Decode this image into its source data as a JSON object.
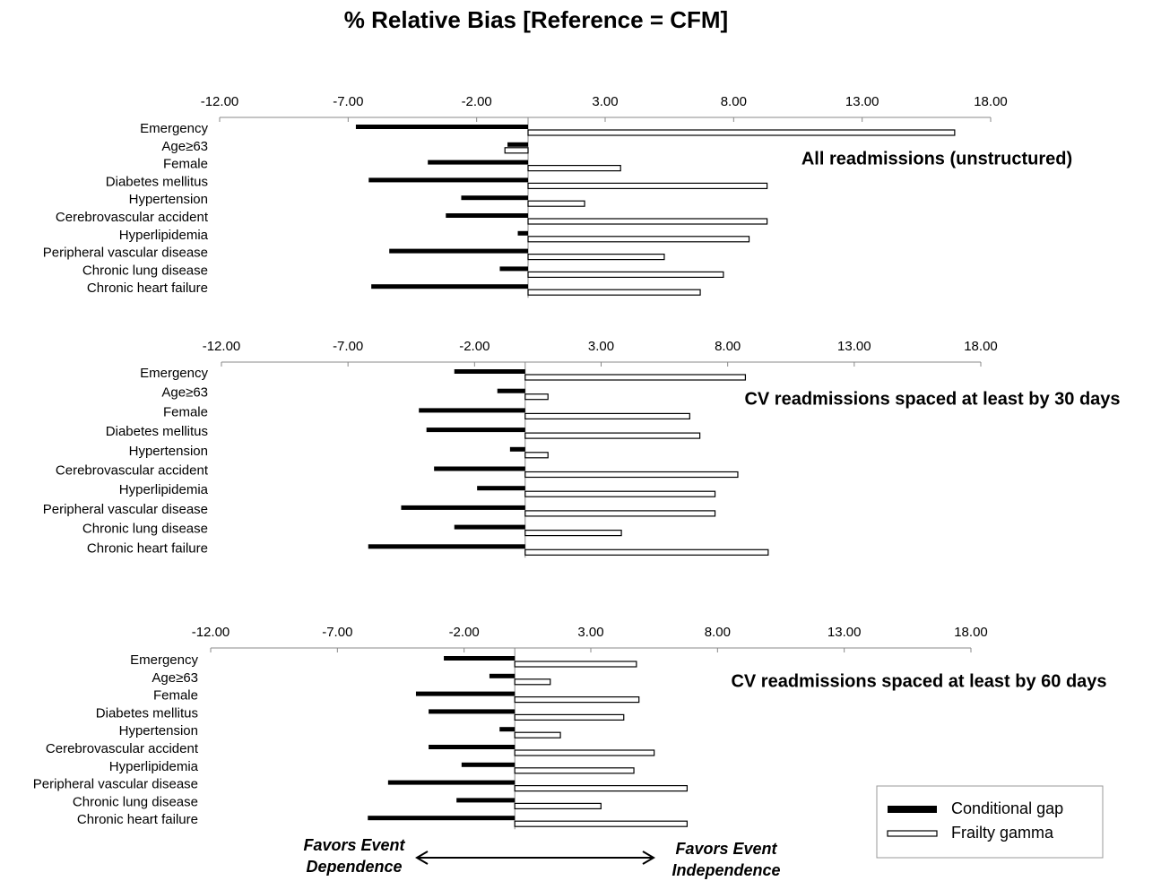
{
  "title": "% Relative Bias [Reference = CFM]",
  "annotations": [
    "Favors Event Dependence",
    "Favors Event Independence"
  ],
  "chart_data": [
    {
      "type": "bar",
      "orientation": "horizontal",
      "title": "All readmissions (unstructured)",
      "categories": [
        "Emergency",
        "Age≥63",
        "Female",
        "Diabetes mellitus",
        "Hypertension",
        "Cerebrovascular accident",
        "Hyperlipidemia",
        "Peripheral vascular disease",
        "Chronic lung disease",
        "Chronic heart failure"
      ],
      "series": [
        {
          "name": "Conditional gap",
          "color": "#000000",
          "values": [
            -6.7,
            -0.8,
            -3.9,
            -6.2,
            -2.6,
            -3.2,
            -0.4,
            -5.4,
            -1.1,
            -6.1
          ]
        },
        {
          "name": "Frailty gamma",
          "color": "#ffffff",
          "values": [
            16.6,
            -0.9,
            3.6,
            9.3,
            2.2,
            9.3,
            8.6,
            5.3,
            7.6,
            6.7
          ]
        }
      ],
      "xlim": [
        -12,
        18
      ],
      "xticks": [
        {
          "value": -12,
          "label": "-12.00"
        },
        {
          "value": -7,
          "label": "-7.00"
        },
        {
          "value": -2,
          "label": "-2.00"
        },
        {
          "value": 3,
          "label": "3.00"
        },
        {
          "value": 8,
          "label": "8.00"
        },
        {
          "value": 13,
          "label": "13.00"
        },
        {
          "value": 18,
          "label": "18.00"
        }
      ]
    },
    {
      "type": "bar",
      "orientation": "horizontal",
      "title": "CV readmissions spaced at least by 30 days",
      "categories": [
        "Emergency",
        "Age≥63",
        "Female",
        "Diabetes mellitus",
        "Hypertension",
        "Cerebrovascular accident",
        "Hyperlipidemia",
        "Peripheral vascular disease",
        "Chronic lung disease",
        "Chronic heart failure"
      ],
      "series": [
        {
          "name": "Conditional gap",
          "color": "#000000",
          "values": [
            -2.8,
            -1.1,
            -4.2,
            -3.9,
            -0.6,
            -3.6,
            -1.9,
            -4.9,
            -2.8,
            -6.2
          ]
        },
        {
          "name": "Frailty gamma",
          "color": "#ffffff",
          "values": [
            8.7,
            0.9,
            6.5,
            6.9,
            0.9,
            8.4,
            7.5,
            7.5,
            3.8,
            9.6
          ]
        }
      ],
      "xlim": [
        -12,
        18
      ],
      "xticks": [
        {
          "value": -12,
          "label": "-12.00"
        },
        {
          "value": -7,
          "label": "-7.00"
        },
        {
          "value": -2,
          "label": "-2.00"
        },
        {
          "value": 3,
          "label": "3.00"
        },
        {
          "value": 8,
          "label": "8.00"
        },
        {
          "value": 13,
          "label": "13.00"
        },
        {
          "value": 18,
          "label": "18.00"
        }
      ]
    },
    {
      "type": "bar",
      "orientation": "horizontal",
      "title": "CV readmissions spaced at least by 60 days",
      "categories": [
        "Emergency",
        "Age≥63",
        "Female",
        "Diabetes mellitus",
        "Hypertension",
        "Cerebrovascular accident",
        "Hyperlipidemia",
        "Peripheral vascular disease",
        "Chronic lung disease",
        "Chronic heart failure"
      ],
      "series": [
        {
          "name": "Conditional gap",
          "color": "#000000",
          "values": [
            -2.8,
            -1.0,
            -3.9,
            -3.4,
            -0.6,
            -3.4,
            -2.1,
            -5.0,
            -2.3,
            -5.8
          ]
        },
        {
          "name": "Frailty gamma",
          "color": "#ffffff",
          "values": [
            4.8,
            1.4,
            4.9,
            4.3,
            1.8,
            5.5,
            4.7,
            6.8,
            3.4,
            6.8
          ]
        }
      ],
      "xlim": [
        -12,
        18
      ],
      "xticks": [
        {
          "value": -12,
          "label": "-12.00"
        },
        {
          "value": -7,
          "label": "-7.00"
        },
        {
          "value": -2,
          "label": "-2.00"
        },
        {
          "value": 3,
          "label": "3.00"
        },
        {
          "value": 8,
          "label": "8.00"
        },
        {
          "value": 13,
          "label": "13.00"
        },
        {
          "value": 18,
          "label": "18.00"
        }
      ]
    }
  ]
}
